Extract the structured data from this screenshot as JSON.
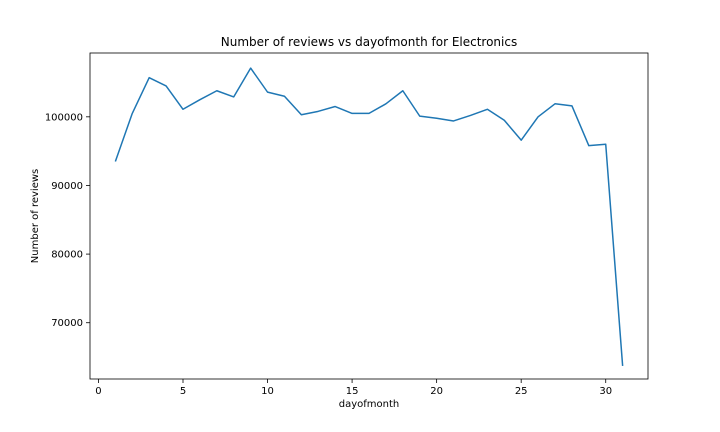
{
  "chart_data": {
    "type": "line",
    "title": "Number of reviews vs dayofmonth for Electronics",
    "xlabel": "dayofmonth",
    "ylabel": "Number of reviews",
    "xlim": [
      -0.5,
      32.5
    ],
    "ylim": [
      61800,
      109300
    ],
    "xticks": [
      0,
      5,
      10,
      15,
      20,
      25,
      30
    ],
    "yticks": [
      70000,
      80000,
      90000,
      100000
    ],
    "grid": false,
    "line_color": "#1f77b4",
    "series": [
      {
        "x": [
          1,
          2,
          3,
          4,
          5,
          6,
          7,
          8,
          9,
          10,
          11,
          12,
          13,
          14,
          15,
          16,
          17,
          18,
          19,
          20,
          21,
          22,
          23,
          24,
          25,
          26,
          27,
          28,
          29,
          30,
          31
        ],
        "values": [
          93500,
          100500,
          105700,
          104500,
          101100,
          102500,
          103800,
          102900,
          107100,
          103600,
          103000,
          100300,
          100800,
          101500,
          100500,
          100500,
          101900,
          103800,
          100100,
          99800,
          99400,
          100200,
          101100,
          99500,
          96600,
          100000,
          101900,
          101600,
          95800,
          96000,
          63700
        ]
      }
    ]
  }
}
